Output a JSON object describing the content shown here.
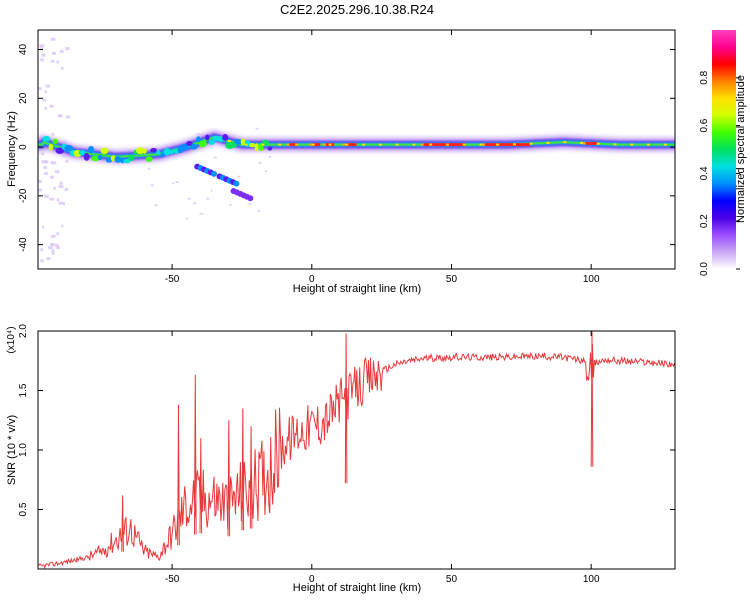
{
  "title": "C2E2.2025.296.10.38.R24",
  "chart_data": [
    {
      "type": "heatmap",
      "title": "C2E2.2025.296.10.38.R24",
      "xlabel": "Height of straight line (km)",
      "ylabel": "Frequency (Hz)",
      "xlim": [
        -98,
        130
      ],
      "ylim": [
        -50,
        48
      ],
      "xticks": [
        "-50",
        "0",
        "50",
        "100"
      ],
      "yticks": [
        "40",
        "20",
        "0",
        "-20",
        "-40"
      ],
      "colorbar": {
        "label": "Normalized spectral amplitude",
        "ticks": [
          "0.0",
          "0.2",
          "0.4",
          "0.6",
          "0.8"
        ],
        "range": [
          0,
          1
        ],
        "colors": [
          "#ffffff",
          "#c9a8f5",
          "#9b4dff",
          "#4a00e6",
          "#0000ff",
          "#0090ff",
          "#00e0e0",
          "#00e060",
          "#40ff00",
          "#d0ff00",
          "#ffe000",
          "#ff8000",
          "#ff0000",
          "#ff0090",
          "#ff40c0"
        ]
      },
      "band_center_points": [
        {
          "x": -96,
          "f": 2
        },
        {
          "x": -85,
          "f": -2
        },
        {
          "x": -70,
          "f": -4
        },
        {
          "x": -55,
          "f": -3
        },
        {
          "x": -45,
          "f": 0
        },
        {
          "x": -35,
          "f": 4
        },
        {
          "x": -25,
          "f": 1
        },
        {
          "x": -10,
          "f": 1
        },
        {
          "x": 10,
          "f": 1
        },
        {
          "x": 40,
          "f": 1
        },
        {
          "x": 70,
          "f": 1
        },
        {
          "x": 90,
          "f": 2
        },
        {
          "x": 110,
          "f": 1
        },
        {
          "x": 130,
          "f": 1
        }
      ],
      "branch_points": [
        {
          "x": -38,
          "f": -8
        },
        {
          "x": -30,
          "f": -12
        },
        {
          "x": -25,
          "f": -18
        }
      ]
    },
    {
      "type": "line",
      "xlabel": "Height of straight line (km)",
      "ylabel": "SNR (10 * v/v)",
      "multiplier": "(x10⁴)",
      "xlim": [
        -98,
        130
      ],
      "ylim": [
        0,
        2.0
      ],
      "xticks": [
        "-50",
        "0",
        "50",
        "100"
      ],
      "yticks": [
        "2.0",
        "1.5",
        "1.0",
        "0.5"
      ],
      "series": [
        {
          "name": "SNR",
          "color": "#e8393a",
          "x": [
            -98,
            -90,
            -80,
            -75,
            -70,
            -65,
            -60,
            -55,
            -50,
            -45,
            -40,
            -35,
            -30,
            -25,
            -20,
            -15,
            -10,
            -5,
            0,
            5,
            10,
            15,
            20,
            25,
            30,
            35,
            40,
            50,
            60,
            70,
            80,
            90,
            95,
            100,
            105,
            110,
            120,
            130
          ],
          "y": [
            0.02,
            0.05,
            0.1,
            0.15,
            0.25,
            0.35,
            0.15,
            0.1,
            0.3,
            0.55,
            0.6,
            0.6,
            0.55,
            0.65,
            0.7,
            0.85,
            1.05,
            1.15,
            1.2,
            1.25,
            1.4,
            1.5,
            1.58,
            1.66,
            1.72,
            1.75,
            1.77,
            1.78,
            1.78,
            1.78,
            1.79,
            1.78,
            1.76,
            1.72,
            1.76,
            1.75,
            1.74,
            1.72
          ],
          "spikes": [
            {
              "x": -68,
              "y": 0.62
            },
            {
              "x": -48,
              "y": 1.38
            },
            {
              "x": -42,
              "y": 1.63
            },
            {
              "x": -40,
              "y": 1.1
            },
            {
              "x": -30,
              "y": 1.25
            },
            {
              "x": -25,
              "y": 1.35
            },
            {
              "x": -22,
              "y": 1.2
            },
            {
              "x": 12,
              "y": 1.98
            },
            {
              "x": 100,
              "y": 2.0
            }
          ]
        }
      ]
    }
  ]
}
